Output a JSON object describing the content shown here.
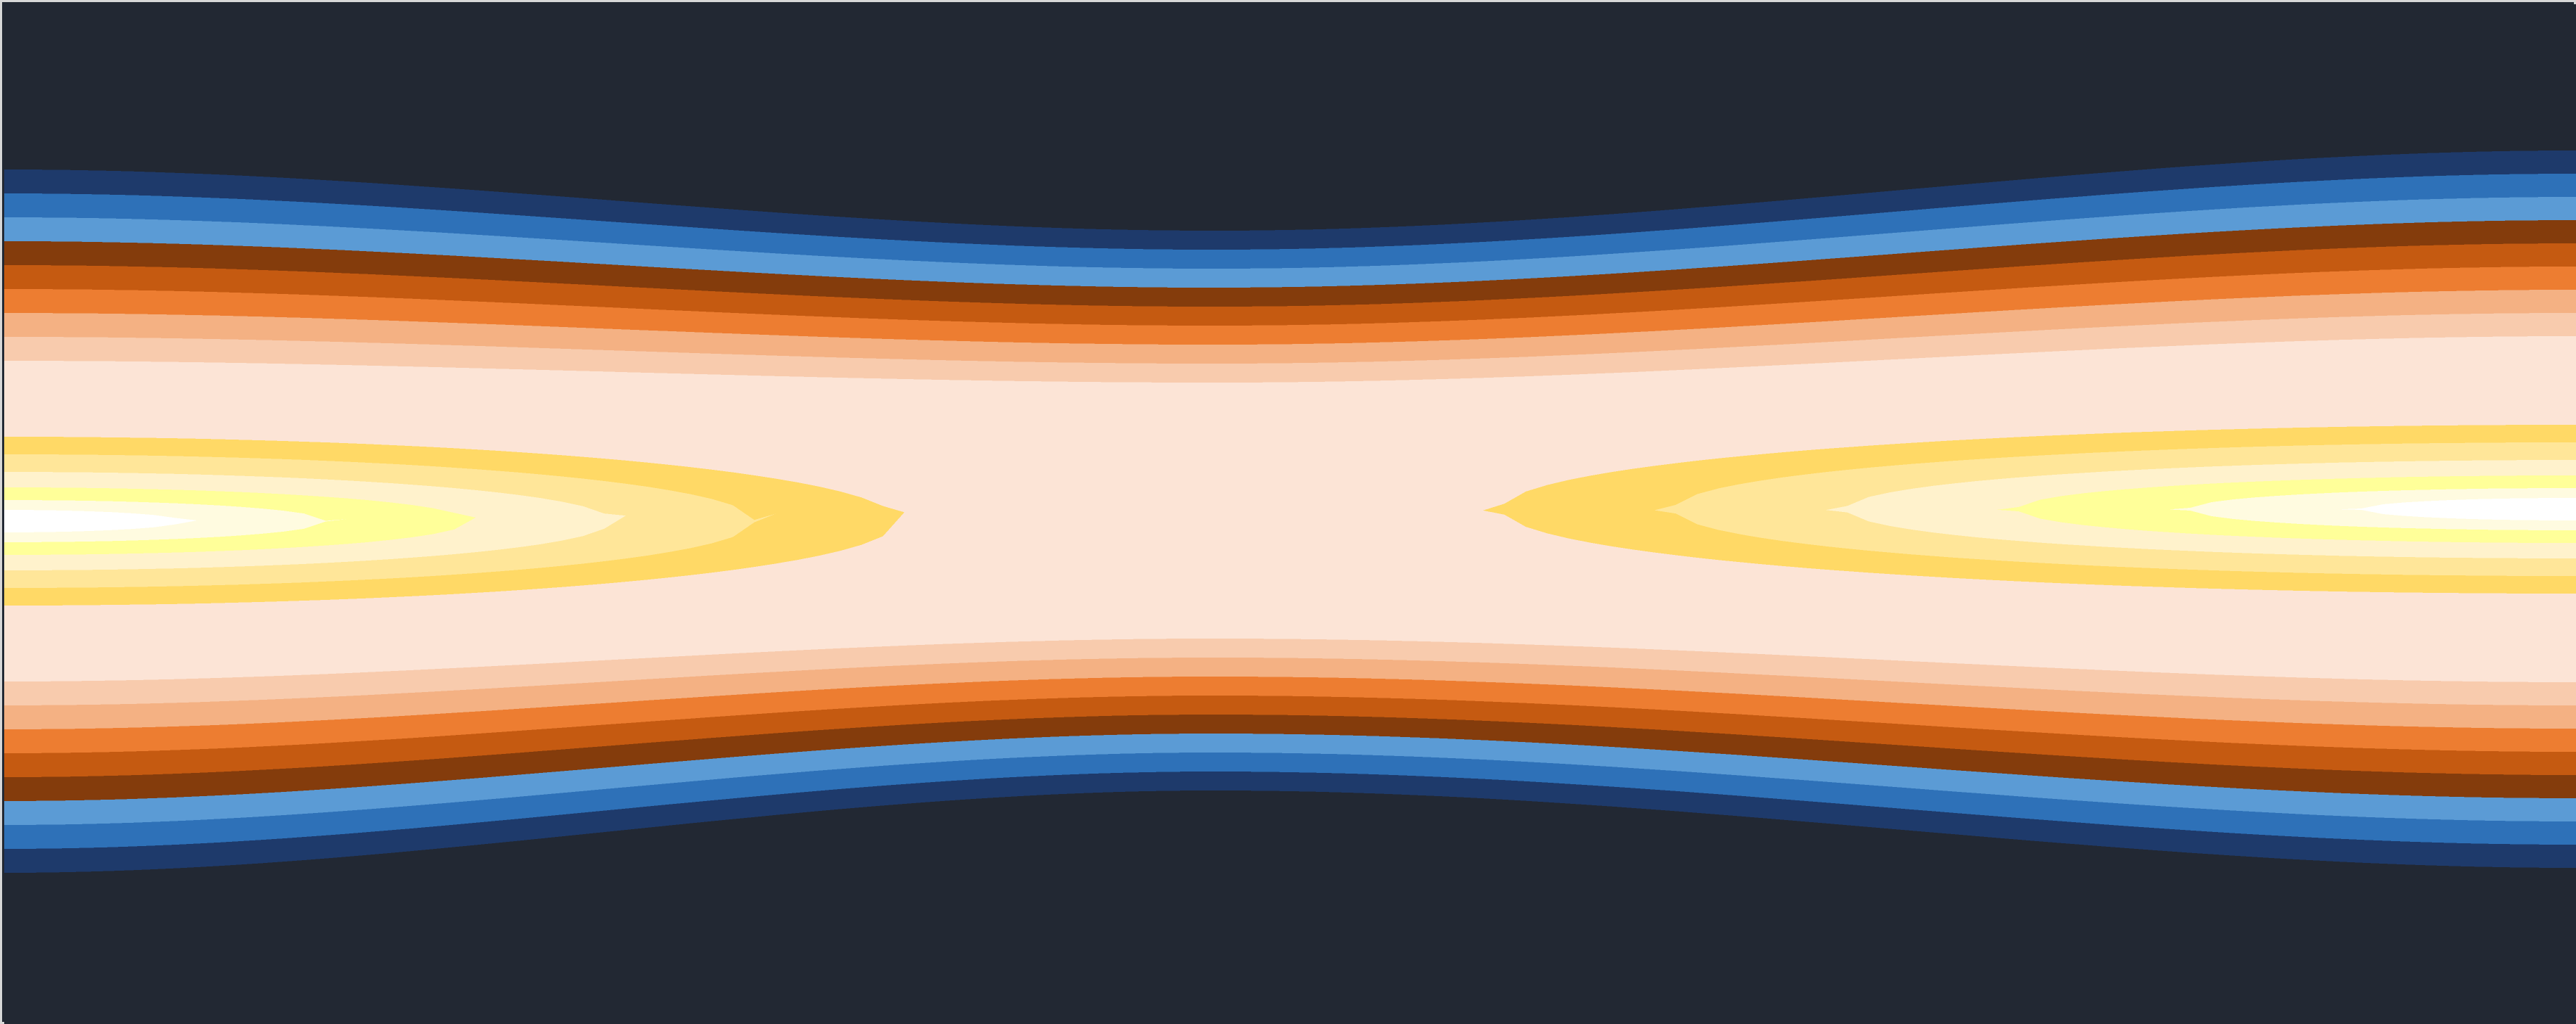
{
  "chart_data": {
    "type": "heatmap",
    "subtype": "filled-contour",
    "title": "",
    "xlabel": "",
    "ylabel": "",
    "x_range": [
      0,
      1
    ],
    "y_range": [
      -1,
      1
    ],
    "axes_visible": false,
    "grid": false,
    "legend": "none",
    "background_color": "#222833",
    "levels": [
      {
        "index": 0,
        "color": "#1e3a6b"
      },
      {
        "index": 1,
        "color": "#2e71b8"
      },
      {
        "index": 2,
        "color": "#5b9bd5"
      },
      {
        "index": 3,
        "color": "#843c0c"
      },
      {
        "index": 4,
        "color": "#c55a11"
      },
      {
        "index": 5,
        "color": "#ed7d31"
      },
      {
        "index": 6,
        "color": "#f4b183"
      },
      {
        "index": 7,
        "color": "#f8cbad"
      },
      {
        "index": 8,
        "color": "#fce4d6"
      },
      {
        "index": 9,
        "color": "#ffd966"
      },
      {
        "index": 10,
        "color": "#ffe699"
      },
      {
        "index": 11,
        "color": "#fff2cc"
      },
      {
        "index": 12,
        "color": "#ffff99"
      },
      {
        "index": 13,
        "color": "#fffbe0"
      },
      {
        "index": 14,
        "color": "#ffffff"
      }
    ],
    "field": {
      "description_of_shape": "two maxima at left and right edges joined by a saddle at center",
      "left_peak_x": 0,
      "right_peak_x": 1,
      "saddle_x": 0.47
    }
  }
}
